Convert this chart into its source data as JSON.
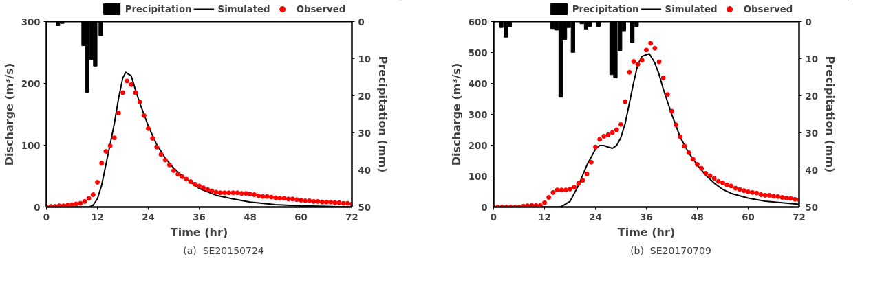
{
  "chart_data": [
    {
      "type": "line",
      "xlabel": "Time (hr)",
      "ylabel": "Discharge (m³/s)",
      "y2label": "Precipitation (mm)",
      "annotations": [
        "(a)  SE20150724"
      ],
      "xlim": [
        0,
        72
      ],
      "xticks": [
        0,
        12,
        24,
        36,
        48,
        60,
        72
      ],
      "ylim": [
        0,
        300
      ],
      "yticks": [
        0,
        100,
        200,
        300
      ],
      "y2lim": [
        50,
        0
      ],
      "y2ticks": [
        0,
        10,
        20,
        30,
        40,
        50
      ],
      "grid": false,
      "legend": "top",
      "series": [
        {
          "name": "Precipitation",
          "type": "bar",
          "axis": "y2",
          "color": "#000000",
          "x": [
            2.7,
            3.7,
            8.75,
            9.6,
            10.6,
            11.5,
            12.8
          ],
          "values": [
            1.1,
            0.5,
            6.5,
            19.1,
            10.2,
            12.0,
            3.8
          ]
        },
        {
          "name": "Simulated",
          "type": "line",
          "color": "#000000",
          "x": [
            0,
            9,
            10,
            11,
            12,
            13,
            14,
            15,
            16,
            17,
            18,
            18.7,
            20,
            21,
            22,
            23,
            24,
            26,
            28,
            30,
            32,
            34,
            36,
            40,
            44,
            48,
            54,
            60,
            66,
            72
          ],
          "values": [
            0,
            0,
            0,
            3,
            13,
            35,
            68,
            101,
            135,
            176,
            209,
            218,
            212,
            189,
            168,
            150,
            131,
            101,
            79,
            63,
            50,
            40,
            30,
            19,
            13,
            8,
            4,
            2,
            1,
            0
          ]
        },
        {
          "name": "Observed",
          "type": "scatter",
          "marker": "circle",
          "color": "#ff0000",
          "x": [
            0,
            1,
            2,
            3,
            4,
            5,
            6,
            7,
            8,
            9,
            10,
            11,
            12,
            13,
            14,
            15,
            16,
            17,
            18,
            19,
            20,
            21,
            22,
            23,
            24,
            25,
            26,
            27,
            28,
            29,
            30,
            31,
            32,
            33,
            34,
            35,
            36,
            37,
            38,
            39,
            40,
            41,
            42,
            43,
            44,
            45,
            46,
            47,
            48,
            49,
            50,
            51,
            52,
            53,
            54,
            55,
            56,
            57,
            58,
            59,
            60,
            61,
            62,
            63,
            64,
            65,
            66,
            67,
            68,
            69,
            70,
            71,
            72
          ],
          "values": [
            0,
            1,
            1,
            2,
            2,
            3,
            4,
            5,
            6,
            9,
            14,
            20,
            40,
            71,
            90,
            99,
            112,
            152,
            185,
            204,
            198,
            185,
            170,
            148,
            127,
            111,
            97,
            85,
            76,
            68,
            59,
            53,
            49,
            45,
            41,
            37,
            34,
            31,
            28,
            26,
            24,
            23,
            23,
            23,
            23,
            23,
            22,
            22,
            21,
            20,
            18,
            17,
            17,
            16,
            15,
            14,
            14,
            13,
            13,
            12,
            11,
            10,
            10,
            9,
            9,
            8,
            8,
            8,
            7,
            7,
            6,
            6,
            5
          ]
        }
      ]
    },
    {
      "type": "line",
      "xlabel": "Time (hr)",
      "ylabel": "Discharge (m³/s)",
      "y2label": "Precipitation (mm)",
      "annotations": [
        "(b)  SE20170709"
      ],
      "xlim": [
        0,
        72
      ],
      "xticks": [
        0,
        12,
        24,
        36,
        48,
        60,
        72
      ],
      "ylim": [
        0,
        600
      ],
      "yticks": [
        0,
        100,
        200,
        300,
        400,
        500,
        600
      ],
      "y2lim": [
        50,
        0
      ],
      "y2ticks": [
        0,
        10,
        20,
        30,
        40,
        50
      ],
      "grid": false,
      "legend": "top",
      "series": [
        {
          "name": "Precipitation",
          "type": "bar",
          "axis": "y2",
          "color": "#000000",
          "x": [
            1.8,
            2.9,
            3.8,
            13.9,
            14.8,
            15.8,
            16.8,
            17.7,
            18.7,
            20.8,
            21.8,
            22.6,
            24.7,
            27.8,
            28.7,
            29.8,
            30.7,
            32.7,
            33.7
          ],
          "values": [
            1.6,
            4.2,
            1.3,
            1.9,
            2.3,
            20.4,
            4.8,
            1.6,
            8.3,
            0.6,
            2.0,
            1.3,
            1.3,
            14.3,
            15.2,
            7.9,
            2.5,
            5.7,
            1.3
          ]
        },
        {
          "name": "Simulated",
          "type": "line",
          "color": "#000000",
          "x": [
            0,
            15.5,
            16,
            18,
            20,
            22,
            24,
            25,
            26,
            27,
            28,
            29,
            30,
            31,
            32,
            33,
            34,
            35,
            36.7,
            38,
            39,
            40,
            42,
            44,
            46,
            48,
            50,
            52,
            54,
            56,
            60,
            64,
            68,
            72
          ],
          "values": [
            0,
            0,
            2,
            18,
            70,
            136,
            187,
            199,
            199,
            194,
            190,
            199,
            225,
            270,
            336,
            403,
            462,
            488,
            496,
            466,
            429,
            381,
            299,
            225,
            175,
            136,
            103,
            77,
            57,
            44,
            29,
            19,
            14,
            9
          ]
        },
        {
          "name": "Observed",
          "type": "scatter",
          "marker": "circle",
          "color": "#ff0000",
          "x": [
            0,
            1,
            2,
            3,
            4,
            5,
            6,
            7,
            8,
            9,
            10,
            11,
            12,
            13,
            14,
            15,
            16,
            17,
            18,
            19,
            20,
            21,
            22,
            23,
            24,
            25,
            26,
            27,
            28,
            29,
            30,
            31,
            32,
            33,
            34,
            35,
            36,
            37,
            38,
            39,
            40,
            41,
            42,
            43,
            44,
            45,
            46,
            47,
            48,
            49,
            50,
            51,
            52,
            53,
            54,
            55,
            56,
            57,
            58,
            59,
            60,
            61,
            62,
            63,
            64,
            65,
            66,
            67,
            68,
            69,
            70,
            71,
            72
          ],
          "values": [
            0,
            0,
            0,
            0,
            0,
            0,
            0,
            3,
            4,
            5,
            5,
            5,
            14,
            31,
            47,
            55,
            55,
            55,
            58,
            64,
            76,
            86,
            107,
            145,
            194,
            219,
            229,
            234,
            241,
            250,
            267,
            341,
            436,
            471,
            462,
            475,
            508,
            530,
            514,
            470,
            418,
            364,
            310,
            266,
            227,
            197,
            176,
            155,
            138,
            125,
            109,
            101,
            93,
            83,
            78,
            72,
            68,
            61,
            57,
            53,
            49,
            47,
            45,
            40,
            38,
            38,
            35,
            34,
            31,
            29,
            28,
            25,
            24
          ]
        }
      ]
    }
  ]
}
